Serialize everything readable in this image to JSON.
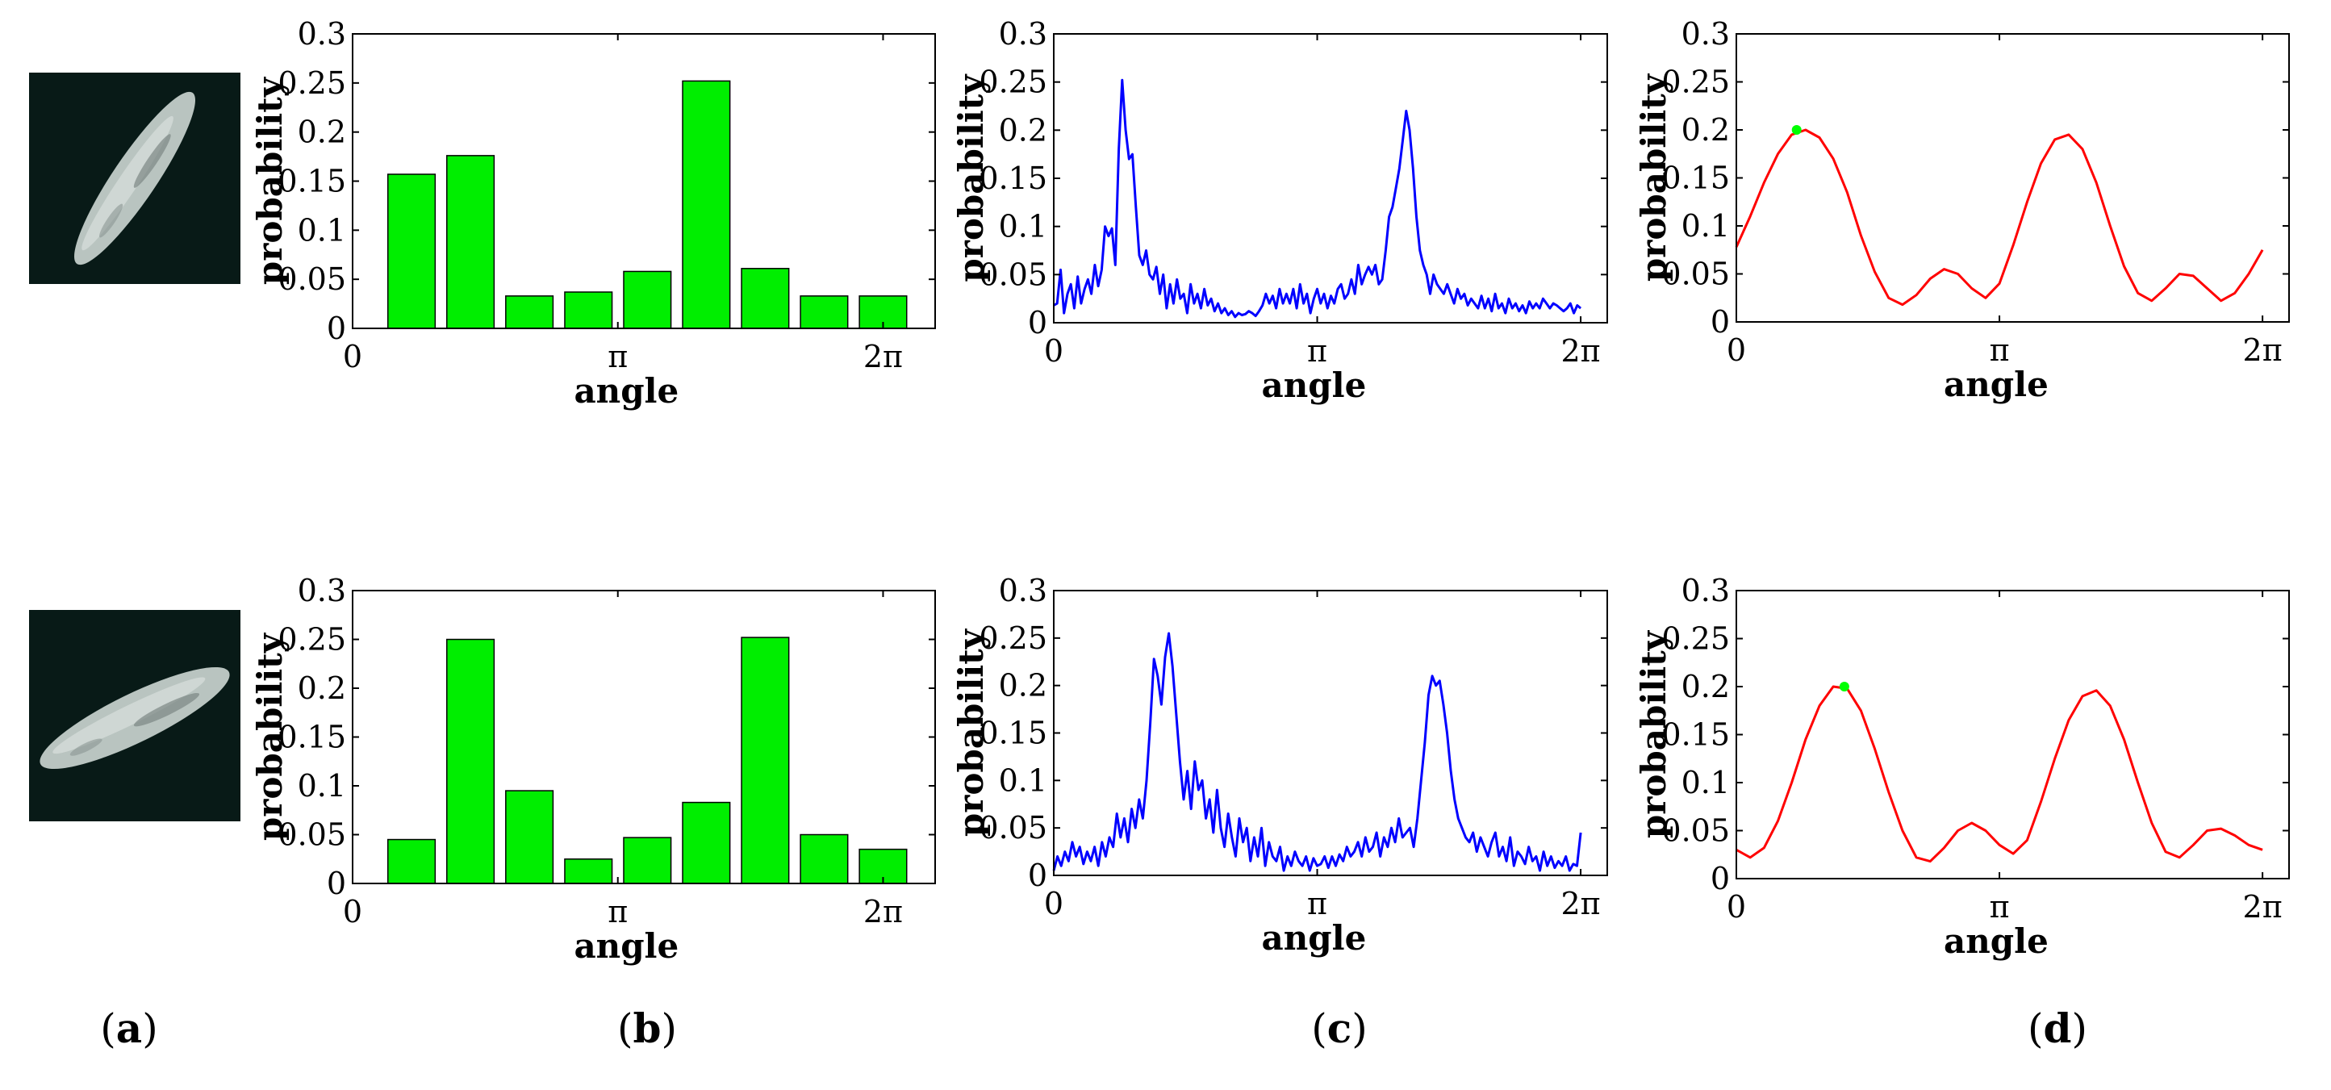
{
  "panel_labels": [
    {
      "open": "(",
      "letter": "a",
      "close": ")"
    },
    {
      "open": "(",
      "letter": "b",
      "close": ")"
    },
    {
      "open": "(",
      "letter": "c",
      "close": ")"
    },
    {
      "open": "(",
      "letter": "d",
      "close": ")"
    }
  ],
  "thumbnails": [
    {
      "name": "particle-image-row-1",
      "bg_color": "#081a17",
      "particle_color": "#b9c4c0",
      "orientation": "diagonal"
    },
    {
      "name": "particle-image-row-2",
      "bg_color": "#081a17",
      "particle_color": "#b9c4c0",
      "orientation": "shallow-diagonal"
    }
  ],
  "colors": {
    "bar_fill": "#00ee00",
    "bar_edge": "#000000",
    "line_blue": "#0000ff",
    "line_red": "#ff0000",
    "marker_green": "#00ff00",
    "axis": "#000000"
  },
  "chart_data": [
    {
      "type": "bar",
      "row": 1,
      "column": "b",
      "xlabel": "angle",
      "ylabel": "probability",
      "xlim": [
        0,
        6.9
      ],
      "ylim": [
        0,
        0.3
      ],
      "x_ticks": [
        {
          "value": 0,
          "label": "0"
        },
        {
          "value": 3.1416,
          "label": "π"
        },
        {
          "value": 6.2832,
          "label": "2π"
        }
      ],
      "y_ticks": [
        {
          "value": 0,
          "label": "0"
        },
        {
          "value": 0.05,
          "label": "0.05"
        },
        {
          "value": 0.1,
          "label": "0.1"
        },
        {
          "value": 0.15,
          "label": "0.15"
        },
        {
          "value": 0.2,
          "label": "0.2"
        },
        {
          "value": 0.25,
          "label": "0.25"
        },
        {
          "value": 0.3,
          "label": "0.3"
        }
      ],
      "bar_centers": [
        0.698,
        1.396,
        2.094,
        2.793,
        3.491,
        4.189,
        4.887,
        5.585,
        6.283
      ],
      "bar_width": 0.56,
      "values": [
        0.157,
        0.176,
        0.033,
        0.037,
        0.058,
        0.252,
        0.061,
        0.033,
        0.033
      ]
    },
    {
      "type": "line",
      "row": 1,
      "column": "c",
      "xlabel": "angle",
      "ylabel": "probability",
      "xlim": [
        0,
        6.6
      ],
      "ylim": [
        0,
        0.3
      ],
      "x_ticks": [
        {
          "value": 0,
          "label": "0"
        },
        {
          "value": 3.1416,
          "label": "π"
        },
        {
          "value": 6.2832,
          "label": "2π"
        }
      ],
      "y_ticks": [
        {
          "value": 0,
          "label": "0"
        },
        {
          "value": 0.05,
          "label": "0.05"
        },
        {
          "value": 0.1,
          "label": "0.1"
        },
        {
          "value": 0.15,
          "label": "0.15"
        },
        {
          "value": 0.2,
          "label": "0.2"
        },
        {
          "value": 0.25,
          "label": "0.25"
        },
        {
          "value": 0.3,
          "label": "0.3"
        }
      ],
      "series": [
        {
          "name": "histogram",
          "color": "#0000ff",
          "x_start": 0,
          "x_end": 6.2832,
          "values": [
            0.018,
            0.02,
            0.055,
            0.01,
            0.03,
            0.04,
            0.015,
            0.048,
            0.02,
            0.035,
            0.045,
            0.03,
            0.06,
            0.038,
            0.055,
            0.1,
            0.09,
            0.098,
            0.06,
            0.18,
            0.252,
            0.2,
            0.17,
            0.175,
            0.12,
            0.07,
            0.06,
            0.075,
            0.05,
            0.045,
            0.058,
            0.03,
            0.05,
            0.015,
            0.04,
            0.02,
            0.045,
            0.025,
            0.03,
            0.01,
            0.04,
            0.02,
            0.03,
            0.015,
            0.035,
            0.018,
            0.025,
            0.012,
            0.02,
            0.01,
            0.015,
            0.008,
            0.012,
            0.006,
            0.01,
            0.008,
            0.009,
            0.012,
            0.01,
            0.007,
            0.012,
            0.018,
            0.03,
            0.02,
            0.028,
            0.015,
            0.035,
            0.02,
            0.03,
            0.02,
            0.035,
            0.015,
            0.04,
            0.02,
            0.03,
            0.01,
            0.025,
            0.035,
            0.02,
            0.03,
            0.015,
            0.028,
            0.02,
            0.035,
            0.04,
            0.025,
            0.03,
            0.045,
            0.03,
            0.06,
            0.04,
            0.05,
            0.058,
            0.05,
            0.06,
            0.04,
            0.045,
            0.075,
            0.11,
            0.12,
            0.14,
            0.16,
            0.19,
            0.22,
            0.2,
            0.16,
            0.11,
            0.075,
            0.06,
            0.05,
            0.03,
            0.05,
            0.04,
            0.035,
            0.03,
            0.04,
            0.03,
            0.02,
            0.035,
            0.025,
            0.03,
            0.018,
            0.025,
            0.02,
            0.015,
            0.028,
            0.015,
            0.025,
            0.012,
            0.03,
            0.015,
            0.02,
            0.01,
            0.025,
            0.015,
            0.02,
            0.012,
            0.018,
            0.01,
            0.022,
            0.015,
            0.02,
            0.015,
            0.025,
            0.02,
            0.015,
            0.02,
            0.018,
            0.015,
            0.012,
            0.015,
            0.02,
            0.01,
            0.018,
            0.015
          ]
        }
      ]
    },
    {
      "type": "line",
      "row": 1,
      "column": "d",
      "xlabel": "angle",
      "ylabel": "probability",
      "xlim": [
        0,
        6.6
      ],
      "ylim": [
        0,
        0.3
      ],
      "x_ticks": [
        {
          "value": 0,
          "label": "0"
        },
        {
          "value": 3.1416,
          "label": "π"
        },
        {
          "value": 6.2832,
          "label": "2π"
        }
      ],
      "y_ticks": [
        {
          "value": 0,
          "label": "0"
        },
        {
          "value": 0.05,
          "label": "0.05"
        },
        {
          "value": 0.1,
          "label": "0.1"
        },
        {
          "value": 0.15,
          "label": "0.15"
        },
        {
          "value": 0.2,
          "label": "0.2"
        },
        {
          "value": 0.25,
          "label": "0.25"
        },
        {
          "value": 0.3,
          "label": "0.3"
        }
      ],
      "series": [
        {
          "name": "fitted-curve",
          "color": "#ff0000",
          "x_start": 0,
          "x_end": 6.2832,
          "values": [
            0.078,
            0.11,
            0.145,
            0.175,
            0.195,
            0.2,
            0.192,
            0.17,
            0.135,
            0.09,
            0.052,
            0.025,
            0.018,
            0.028,
            0.045,
            0.055,
            0.05,
            0.035,
            0.025,
            0.04,
            0.08,
            0.125,
            0.165,
            0.19,
            0.195,
            0.18,
            0.145,
            0.1,
            0.058,
            0.03,
            0.022,
            0.035,
            0.05,
            0.048,
            0.035,
            0.022,
            0.03,
            0.05,
            0.075
          ]
        }
      ],
      "marker": {
        "x": 0.72,
        "y": 0.2,
        "color": "#00ff00"
      }
    },
    {
      "type": "bar",
      "row": 2,
      "column": "b",
      "xlabel": "angle",
      "ylabel": "probability",
      "xlim": [
        0,
        6.9
      ],
      "ylim": [
        0,
        0.3
      ],
      "x_ticks": [
        {
          "value": 0,
          "label": "0"
        },
        {
          "value": 3.1416,
          "label": "π"
        },
        {
          "value": 6.2832,
          "label": "2π"
        }
      ],
      "y_ticks": [
        {
          "value": 0,
          "label": "0"
        },
        {
          "value": 0.05,
          "label": "0.05"
        },
        {
          "value": 0.1,
          "label": "0.1"
        },
        {
          "value": 0.15,
          "label": "0.15"
        },
        {
          "value": 0.2,
          "label": "0.2"
        },
        {
          "value": 0.25,
          "label": "0.25"
        },
        {
          "value": 0.3,
          "label": "0.3"
        }
      ],
      "bar_centers": [
        0.698,
        1.396,
        2.094,
        2.793,
        3.491,
        4.189,
        4.887,
        5.585,
        6.283
      ],
      "bar_width": 0.56,
      "values": [
        0.045,
        0.25,
        0.095,
        0.025,
        0.047,
        0.083,
        0.252,
        0.05,
        0.035
      ]
    },
    {
      "type": "line",
      "row": 2,
      "column": "c",
      "xlabel": "angle",
      "ylabel": "probability",
      "xlim": [
        0,
        6.6
      ],
      "ylim": [
        0,
        0.3
      ],
      "x_ticks": [
        {
          "value": 0,
          "label": "0"
        },
        {
          "value": 3.1416,
          "label": "π"
        },
        {
          "value": 6.2832,
          "label": "2π"
        }
      ],
      "y_ticks": [
        {
          "value": 0,
          "label": "0"
        },
        {
          "value": 0.05,
          "label": "0.05"
        },
        {
          "value": 0.1,
          "label": "0.1"
        },
        {
          "value": 0.15,
          "label": "0.15"
        },
        {
          "value": 0.2,
          "label": "0.2"
        },
        {
          "value": 0.25,
          "label": "0.25"
        },
        {
          "value": 0.3,
          "label": "0.3"
        }
      ],
      "series": [
        {
          "name": "histogram",
          "color": "#0000ff",
          "x_start": 0,
          "x_end": 6.2832,
          "values": [
            0.005,
            0.02,
            0.01,
            0.025,
            0.015,
            0.035,
            0.02,
            0.03,
            0.012,
            0.025,
            0.015,
            0.03,
            0.01,
            0.035,
            0.02,
            0.04,
            0.03,
            0.065,
            0.04,
            0.06,
            0.035,
            0.07,
            0.05,
            0.08,
            0.06,
            0.1,
            0.16,
            0.228,
            0.21,
            0.18,
            0.23,
            0.255,
            0.22,
            0.17,
            0.12,
            0.08,
            0.11,
            0.07,
            0.12,
            0.09,
            0.1,
            0.06,
            0.08,
            0.045,
            0.09,
            0.05,
            0.03,
            0.065,
            0.04,
            0.02,
            0.06,
            0.035,
            0.05,
            0.015,
            0.04,
            0.02,
            0.05,
            0.01,
            0.035,
            0.02,
            0.015,
            0.03,
            0.005,
            0.02,
            0.01,
            0.025,
            0.015,
            0.01,
            0.02,
            0.005,
            0.018,
            0.01,
            0.012,
            0.02,
            0.008,
            0.02,
            0.01,
            0.022,
            0.015,
            0.03,
            0.02,
            0.025,
            0.035,
            0.02,
            0.04,
            0.025,
            0.03,
            0.045,
            0.02,
            0.04,
            0.03,
            0.05,
            0.035,
            0.06,
            0.04,
            0.045,
            0.05,
            0.03,
            0.06,
            0.1,
            0.14,
            0.19,
            0.21,
            0.2,
            0.205,
            0.18,
            0.15,
            0.11,
            0.08,
            0.06,
            0.05,
            0.04,
            0.035,
            0.045,
            0.025,
            0.04,
            0.03,
            0.02,
            0.035,
            0.045,
            0.02,
            0.03,
            0.015,
            0.04,
            0.01,
            0.025,
            0.02,
            0.012,
            0.03,
            0.015,
            0.02,
            0.005,
            0.025,
            0.01,
            0.02,
            0.008,
            0.015,
            0.01,
            0.02,
            0.005,
            0.012,
            0.01,
            0.045
          ]
        }
      ]
    },
    {
      "type": "line",
      "row": 2,
      "column": "d",
      "xlabel": "angle",
      "ylabel": "probability",
      "xlim": [
        0,
        6.6
      ],
      "ylim": [
        0,
        0.3
      ],
      "x_ticks": [
        {
          "value": 0,
          "label": "0"
        },
        {
          "value": 3.1416,
          "label": "π"
        },
        {
          "value": 6.2832,
          "label": "2π"
        }
      ],
      "y_ticks": [
        {
          "value": 0,
          "label": "0"
        },
        {
          "value": 0.05,
          "label": "0.05"
        },
        {
          "value": 0.1,
          "label": "0.1"
        },
        {
          "value": 0.15,
          "label": "0.15"
        },
        {
          "value": 0.2,
          "label": "0.2"
        },
        {
          "value": 0.25,
          "label": "0.25"
        },
        {
          "value": 0.3,
          "label": "0.3"
        }
      ],
      "series": [
        {
          "name": "fitted-curve",
          "color": "#ff0000",
          "x_start": 0,
          "x_end": 6.2832,
          "values": [
            0.03,
            0.022,
            0.032,
            0.06,
            0.1,
            0.145,
            0.18,
            0.2,
            0.198,
            0.175,
            0.135,
            0.09,
            0.05,
            0.022,
            0.018,
            0.032,
            0.05,
            0.058,
            0.05,
            0.035,
            0.026,
            0.04,
            0.08,
            0.125,
            0.165,
            0.19,
            0.196,
            0.18,
            0.145,
            0.1,
            0.058,
            0.028,
            0.022,
            0.035,
            0.05,
            0.052,
            0.045,
            0.035,
            0.03
          ]
        }
      ],
      "marker": {
        "x": 1.29,
        "y": 0.2,
        "color": "#00ff00"
      }
    }
  ]
}
